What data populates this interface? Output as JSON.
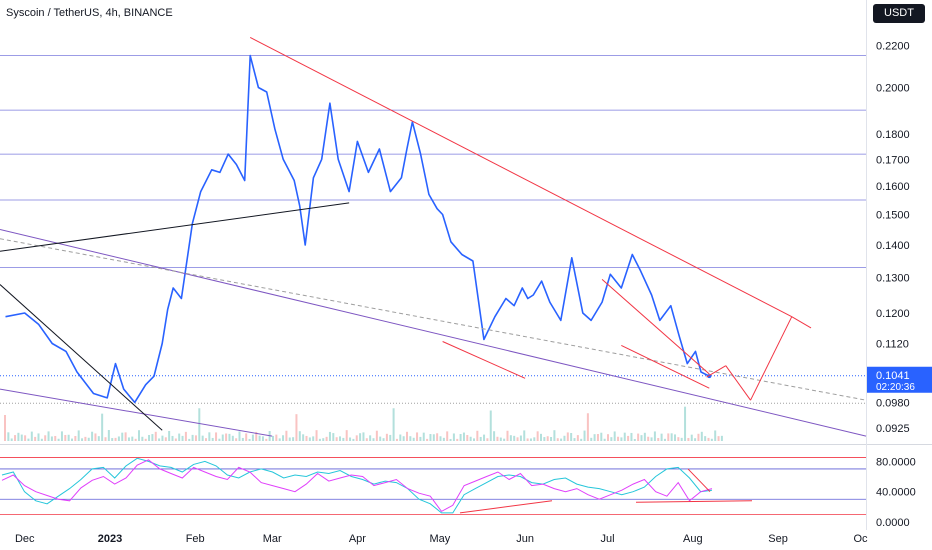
{
  "header": {
    "title": "Syscoin / TetherUS, 4h, BINANCE",
    "currency": "USDT"
  },
  "colors": {
    "price_line": "#2962ff",
    "trend_red": "#f23645",
    "channel_purple": "#7e57c2",
    "h_level": "#5b5bd6",
    "rsi": "#e040fb",
    "stoch": "#26c6da",
    "last_price_bg": "#2962ff"
  },
  "chart_data": {
    "type": "line",
    "title": "Syscoin / TetherUS, 4h, BINANCE",
    "x_ticks": [
      "Dec",
      "2023",
      "Feb",
      "Mar",
      "Apr",
      "May",
      "Jun",
      "Jul",
      "Aug",
      "Sep",
      "Oc"
    ],
    "y_ticks": [
      "0.2200",
      "0.2000",
      "0.1800",
      "0.1700",
      "0.1600",
      "0.1500",
      "0.1400",
      "0.1300",
      "0.1200",
      "0.1120",
      "0.0980",
      "0.0925"
    ],
    "y_scale": "log",
    "horizontal_levels": [
      0.215,
      0.19,
      0.172,
      0.155,
      0.133
    ],
    "last_price": "0.1041",
    "countdown": "02:20:36",
    "series": [
      {
        "x": [
          "2022-11-24",
          "2022-12-01",
          "2022-12-06",
          "2022-12-11",
          "2022-12-16",
          "2022-12-20",
          "2022-12-26",
          "2022-12-31",
          "2023-01-03",
          "2023-01-06",
          "2023-01-10",
          "2023-01-14",
          "2023-01-17",
          "2023-01-20",
          "2023-01-22",
          "2023-01-24",
          "2023-01-27",
          "2023-01-31",
          "2023-02-03",
          "2023-02-07",
          "2023-02-10",
          "2023-02-13",
          "2023-02-16",
          "2023-02-19",
          "2023-02-21",
          "2023-02-24",
          "2023-02-27",
          "2023-03-02",
          "2023-03-05",
          "2023-03-09",
          "2023-03-11",
          "2023-03-13",
          "2023-03-16",
          "2023-03-19",
          "2023-03-22",
          "2023-03-25",
          "2023-03-29",
          "2023-04-01",
          "2023-04-05",
          "2023-04-09",
          "2023-04-13",
          "2023-04-17",
          "2023-04-19",
          "2023-04-21",
          "2023-04-24",
          "2023-04-27",
          "2023-04-30",
          "2023-05-02",
          "2023-05-05",
          "2023-05-09",
          "2023-05-13",
          "2023-05-17",
          "2023-05-21",
          "2023-05-25",
          "2023-05-28",
          "2023-05-31",
          "2023-06-02",
          "2023-06-04",
          "2023-06-07",
          "2023-06-10",
          "2023-06-14",
          "2023-06-18",
          "2023-06-22",
          "2023-06-25",
          "2023-06-29",
          "2023-07-02",
          "2023-07-06",
          "2023-07-10",
          "2023-07-13",
          "2023-07-17",
          "2023-07-20",
          "2023-07-24",
          "2023-07-27",
          "2023-07-30",
          "2023-08-02",
          "2023-08-04",
          "2023-08-07"
        ],
        "y": [
          0.119,
          0.12,
          0.117,
          0.112,
          0.11,
          0.105,
          0.1,
          0.099,
          0.107,
          0.101,
          0.098,
          0.102,
          0.104,
          0.112,
          0.121,
          0.127,
          0.124,
          0.147,
          0.158,
          0.166,
          0.165,
          0.172,
          0.168,
          0.162,
          0.215,
          0.2,
          0.198,
          0.182,
          0.17,
          0.162,
          0.153,
          0.14,
          0.163,
          0.17,
          0.193,
          0.17,
          0.158,
          0.177,
          0.165,
          0.174,
          0.158,
          0.163,
          0.174,
          0.185,
          0.172,
          0.157,
          0.152,
          0.15,
          0.141,
          0.137,
          0.135,
          0.113,
          0.119,
          0.124,
          0.122,
          0.127,
          0.124,
          0.125,
          0.129,
          0.123,
          0.118,
          0.136,
          0.12,
          0.118,
          0.123,
          0.131,
          0.127,
          0.137,
          0.132,
          0.125,
          0.118,
          0.122,
          0.114,
          0.107,
          0.11,
          0.105,
          0.104
        ]
      }
    ],
    "ylim": [
      0.09,
      0.232
    ],
    "xlim": [
      "2022-11-22",
      "2023-10-03"
    ],
    "oscillator": {
      "y_ticks": [
        "80.0000",
        "40.0000",
        "0.0000"
      ],
      "ylim": [
        -4,
        95
      ],
      "lines": [
        85,
        70,
        30,
        10
      ],
      "rsi": [
        55,
        62,
        48,
        40,
        35,
        30,
        28,
        45,
        55,
        60,
        50,
        58,
        75,
        82,
        70,
        64,
        58,
        72,
        66,
        60,
        56,
        72,
        66,
        52,
        48,
        44,
        40,
        50,
        64,
        54,
        58,
        62,
        60,
        48,
        52,
        56,
        44,
        38,
        34,
        14,
        22,
        48,
        54,
        60,
        66,
        56,
        64,
        48,
        50,
        44,
        40,
        44,
        36,
        30,
        36,
        42,
        50,
        56,
        40,
        34,
        52,
        28,
        40,
        44
      ],
      "stoch": [
        62,
        66,
        40,
        28,
        24,
        34,
        44,
        56,
        70,
        72,
        58,
        74,
        84,
        80,
        74,
        72,
        66,
        76,
        80,
        74,
        62,
        58,
        66,
        70,
        66,
        58,
        62,
        60,
        66,
        64,
        68,
        60,
        56,
        50,
        54,
        52,
        44,
        30,
        24,
        12,
        12,
        36,
        44,
        52,
        60,
        62,
        60,
        52,
        50,
        56,
        58,
        50,
        46,
        44,
        40,
        36,
        40,
        46,
        60,
        70,
        72,
        58,
        40,
        42
      ]
    }
  }
}
